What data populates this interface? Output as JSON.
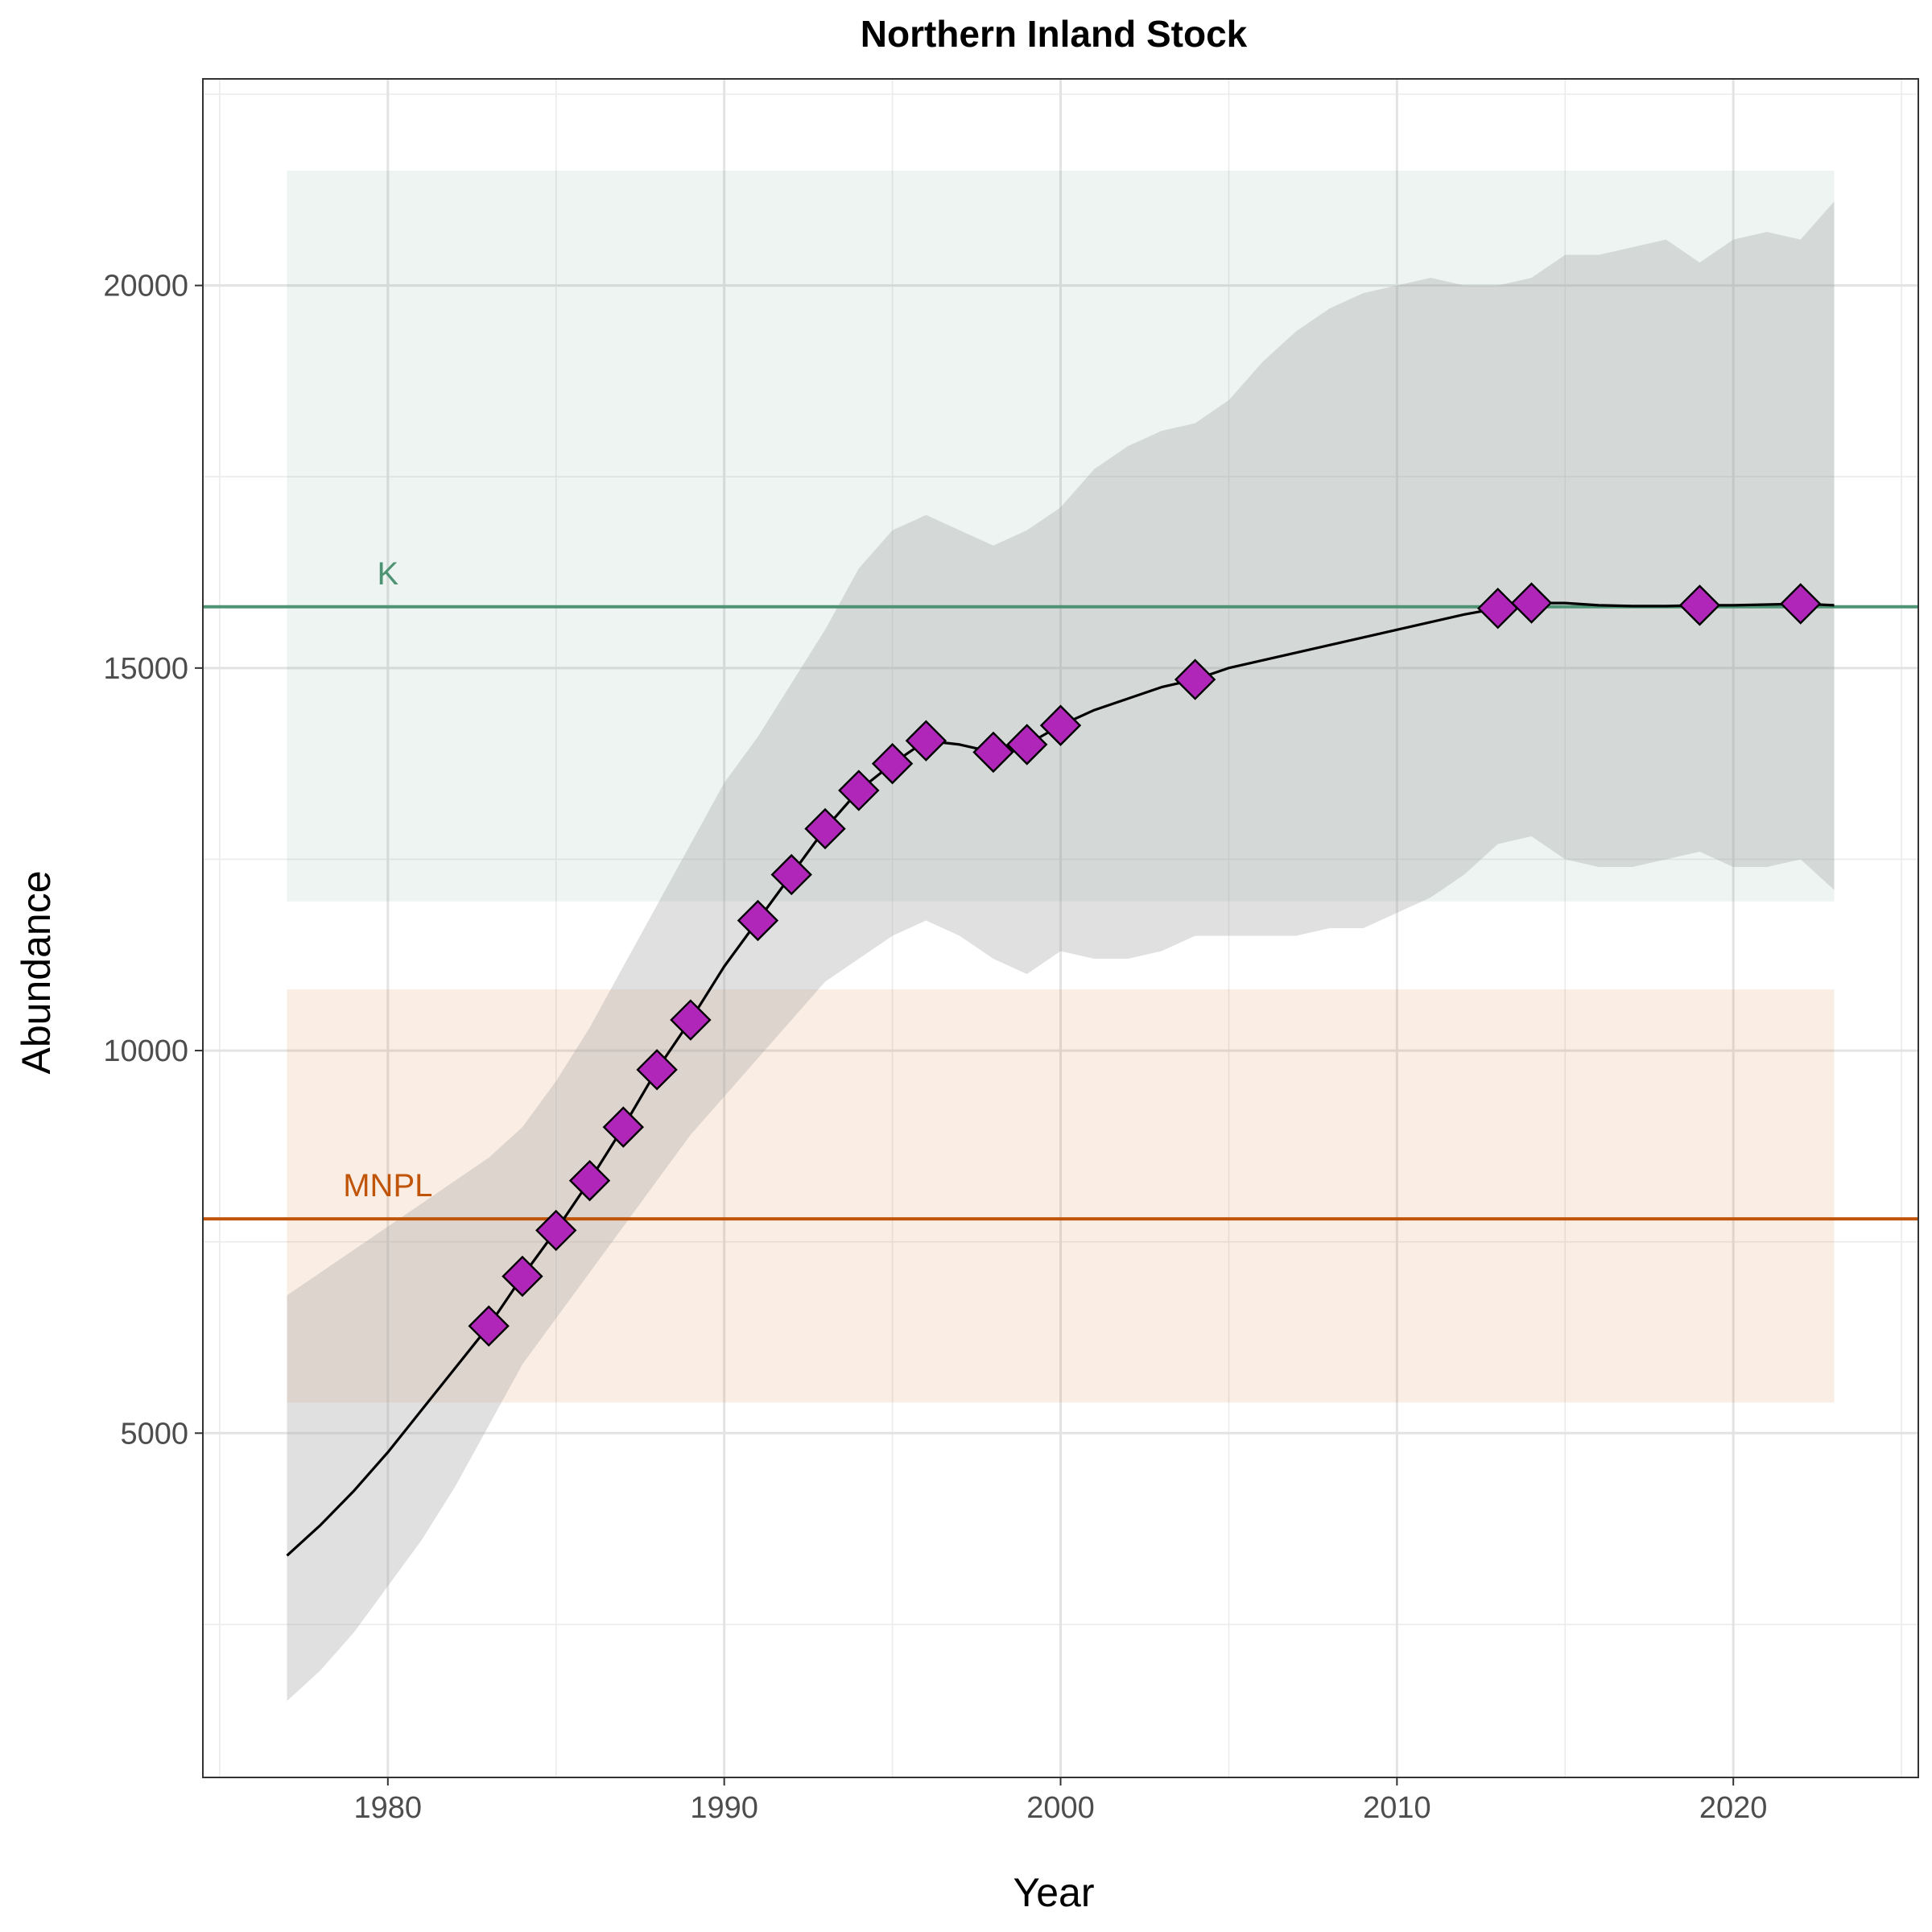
{
  "chart_data": {
    "type": "line",
    "title": "Northern Inland Stock",
    "xlabel": "Year",
    "ylabel": "Abundance",
    "xlim": [
      1974.5,
      2025.5
    ],
    "ylim": [
      500,
      22700
    ],
    "x_ticks": [
      1980,
      1990,
      2000,
      2010,
      2020
    ],
    "x_tick_labels": [
      "1980",
      "1990",
      "2000",
      "2010",
      "2020"
    ],
    "y_ticks": [
      5000,
      10000,
      15000,
      20000
    ],
    "y_tick_labels": [
      "5000",
      "10000",
      "15000",
      "20000"
    ],
    "grid": true,
    "bands": [
      {
        "label": "K",
        "x": [
          1977,
          2023
        ],
        "y": [
          11950,
          21500
        ],
        "color": "#4e9373",
        "opacity": 0.1
      },
      {
        "label": "MNPL",
        "x": [
          1977,
          2023
        ],
        "y": [
          5400,
          10800
        ],
        "color": "#d2691e",
        "opacity": 0.12
      }
    ],
    "reference_lines": [
      {
        "label": "K",
        "y": 15800,
        "color": "#4e9373",
        "label_x": 1980
      },
      {
        "label": "MNPL",
        "y": 7800,
        "color": "#c0550a",
        "label_x": 1980
      }
    ],
    "confidence_band": {
      "x": [
        1977,
        1978,
        1979,
        1980,
        1981,
        1982,
        1983,
        1984,
        1985,
        1986,
        1987,
        1988,
        1989,
        1990,
        1991,
        1992,
        1993,
        1994,
        1995,
        1996,
        1997,
        1998,
        1999,
        2000,
        2001,
        2002,
        2003,
        2004,
        2005,
        2006,
        2007,
        2008,
        2009,
        2010,
        2011,
        2012,
        2013,
        2014,
        2015,
        2016,
        2017,
        2018,
        2019,
        2020,
        2021,
        2022,
        2023
      ],
      "lower": [
        1500,
        1900,
        2400,
        3000,
        3600,
        4300,
        5100,
        5900,
        6500,
        7100,
        7700,
        8300,
        8900,
        9400,
        9900,
        10400,
        10900,
        11200,
        11500,
        11700,
        11500,
        11200,
        11000,
        11300,
        11200,
        11200,
        11300,
        11500,
        11500,
        11500,
        11500,
        11600,
        11600,
        11800,
        12000,
        12300,
        12700,
        12800,
        12500,
        12400,
        12400,
        12500,
        12600,
        12400,
        12400,
        12500,
        12100
      ],
      "upper": [
        6800,
        7100,
        7400,
        7700,
        8000,
        8300,
        8600,
        9000,
        9600,
        10300,
        11100,
        11900,
        12700,
        13500,
        14100,
        14800,
        15500,
        16300,
        16800,
        17000,
        16800,
        16600,
        16800,
        17100,
        17600,
        17900,
        18100,
        18200,
        18500,
        19000,
        19400,
        19700,
        19900,
        20000,
        20100,
        20000,
        20000,
        20100,
        20400,
        20400,
        20500,
        20600,
        20300,
        20600,
        20700,
        20600,
        21100
      ]
    },
    "series": [
      {
        "kind": "estimate",
        "x": [
          1977,
          1978,
          1979,
          1980,
          1981,
          1982,
          1983,
          1984,
          1985,
          1986,
          1987,
          1988,
          1989,
          1990,
          1991,
          1992,
          1993,
          1994,
          1995,
          1996,
          1997,
          1998,
          1999,
          2000,
          2001,
          2002,
          2003,
          2004,
          2005,
          2006,
          2007,
          2008,
          2009,
          2010,
          2011,
          2012,
          2013,
          2014,
          2015,
          2016,
          2017,
          2018,
          2019,
          2020,
          2021,
          2022,
          2023
        ],
        "values": [
          3400,
          3800,
          4250,
          4750,
          5300,
          5850,
          6400,
          7050,
          7650,
          8300,
          9000,
          9750,
          10400,
          11100,
          11700,
          12300,
          12900,
          13400,
          13750,
          14050,
          14000,
          13900,
          14000,
          14250,
          14450,
          14600,
          14750,
          14850,
          15000,
          15100,
          15200,
          15300,
          15400,
          15500,
          15600,
          15700,
          15780,
          15850,
          15850,
          15820,
          15810,
          15810,
          15820,
          15820,
          15830,
          15840,
          15820
        ],
        "color": "#000000"
      },
      {
        "kind": "survey",
        "x": [
          1983,
          1984,
          1985,
          1986,
          1987,
          1988,
          1989,
          1991,
          1992,
          1993,
          1994,
          1995,
          1996,
          1998,
          1999,
          2000,
          2004,
          2013,
          2014,
          2019,
          2022
        ],
        "values": [
          6400,
          7050,
          7650,
          8300,
          9000,
          9750,
          10400,
          11700,
          12300,
          12900,
          13400,
          13750,
          14050,
          13900,
          14000,
          14250,
          14850,
          15780,
          15850,
          15820,
          15840
        ],
        "color": "#b026b8",
        "marker": "diamond"
      }
    ]
  }
}
